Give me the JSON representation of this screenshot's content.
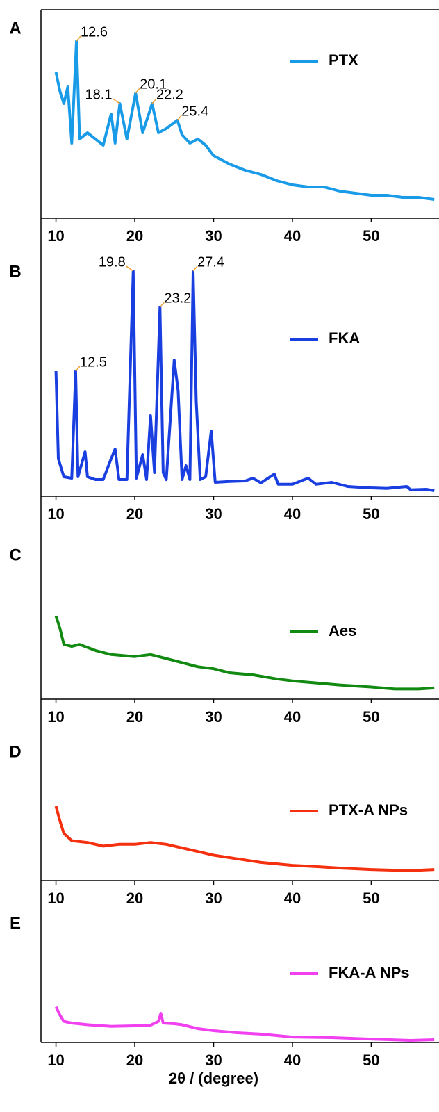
{
  "chart_data": [
    {
      "type": "line",
      "panel_label": "A",
      "xlim": [
        8.1,
        58.6
      ],
      "ylim": [
        0,
        100
      ],
      "xticks": [
        10,
        20,
        30,
        40,
        50
      ],
      "peak_labels": [
        12.6,
        18.1,
        20.1,
        22.2,
        25.4
      ],
      "series": [
        {
          "name": "PTX",
          "color": "#1a9be8",
          "x": [
            10,
            10.5,
            11,
            11.5,
            12,
            12.6,
            13,
            14,
            15,
            16,
            17,
            17.5,
            18.1,
            19,
            20.1,
            21,
            22.2,
            23,
            24,
            25.4,
            26,
            27,
            28,
            29,
            30,
            32,
            34,
            36,
            38,
            40,
            42,
            44,
            46,
            48,
            50,
            52,
            54,
            56,
            58
          ],
          "values": [
            70,
            61,
            55,
            63,
            36,
            85,
            38,
            41,
            38,
            35,
            50,
            36,
            55,
            38,
            60,
            41,
            55,
            41,
            43,
            47,
            40,
            36,
            38,
            35,
            30,
            26,
            23,
            21,
            18,
            16,
            15,
            15,
            13,
            12,
            11,
            11,
            10,
            10,
            9
          ]
        }
      ]
    },
    {
      "type": "line",
      "panel_label": "B",
      "xlim": [
        8.1,
        58.6
      ],
      "ylim": [
        0,
        100
      ],
      "xticks": [
        10,
        20,
        30,
        40,
        50
      ],
      "peak_labels": [
        12.5,
        19.8,
        23.2,
        27.4
      ],
      "series": [
        {
          "name": "FKA",
          "color": "#1a3fe0",
          "x": [
            10,
            10.3,
            11,
            12,
            12.5,
            12.8,
            13.7,
            14,
            15,
            16,
            17,
            17.5,
            18,
            19,
            19.8,
            20.2,
            21,
            21.5,
            22,
            22.5,
            23.2,
            23.6,
            24,
            25,
            25.5,
            26,
            26.5,
            27,
            27.4,
            27.8,
            28.3,
            29,
            29.7,
            30.2,
            32,
            34,
            35,
            36,
            37.7,
            38.2,
            40,
            42,
            43,
            45,
            47,
            50,
            52,
            54.5,
            55,
            57,
            58
          ],
          "values": [
            45,
            13.5,
            7,
            6.5,
            45,
            7,
            16,
            7,
            6,
            6,
            13.5,
            17,
            6,
            6,
            81,
            6.5,
            15,
            6,
            29,
            8.5,
            68,
            8.5,
            6,
            49,
            38,
            6,
            11,
            6,
            81,
            34,
            6,
            7,
            23.5,
            5,
            5.3,
            5.5,
            6.5,
            4.8,
            8,
            4.3,
            4.3,
            6.5,
            4.3,
            5,
            3.5,
            3,
            2.8,
            3.5,
            2.3,
            2.5,
            2
          ]
        }
      ]
    },
    {
      "type": "line",
      "panel_label": "C",
      "xlim": [
        8.1,
        58.6
      ],
      "ylim": [
        0,
        100
      ],
      "xticks": [
        10,
        20,
        30,
        40,
        50
      ],
      "series": [
        {
          "name": "Aes",
          "color": "#128a12",
          "x": [
            10,
            10.5,
            11,
            12,
            13,
            15,
            17,
            20,
            22,
            24,
            26,
            28,
            30,
            32,
            35,
            38,
            40,
            43,
            46,
            50,
            53,
            56,
            58
          ],
          "values": [
            41,
            35,
            27,
            26,
            27,
            24,
            22,
            21,
            22,
            20,
            18,
            16,
            15,
            13,
            12,
            10,
            9,
            8,
            7,
            6,
            5,
            5,
            5.5
          ]
        }
      ]
    },
    {
      "type": "line",
      "panel_label": "D",
      "xlim": [
        8.1,
        58.6
      ],
      "ylim": [
        0,
        100
      ],
      "xticks": [
        10,
        20,
        30,
        40,
        50
      ],
      "series": [
        {
          "name": "PTX-A NPs",
          "color": "#f5300f",
          "x": [
            10,
            10.5,
            11,
            12,
            14,
            16,
            18,
            20,
            22,
            24,
            26,
            28,
            30,
            33,
            36,
            40,
            43,
            46,
            50,
            53,
            56,
            58
          ],
          "values": [
            41,
            33,
            26,
            22,
            21,
            19,
            20,
            20,
            21,
            20,
            18,
            16,
            14,
            12,
            10,
            8.4,
            7.7,
            6.9,
            6.1,
            5.7,
            5.7,
            6.1
          ]
        }
      ]
    },
    {
      "type": "line",
      "panel_label": "E",
      "xlim": [
        8.1,
        58.6
      ],
      "ylim": [
        0,
        100
      ],
      "xticks": [
        10,
        20,
        30,
        40,
        50
      ],
      "xlabel": "2θ / (degree)",
      "series": [
        {
          "name": "FKA-A NPs",
          "color": "#f040f0",
          "x": [
            10,
            10.5,
            11,
            12,
            14,
            17,
            20,
            22,
            23,
            23.3,
            23.6,
            25,
            26,
            28,
            30,
            33,
            36,
            40,
            45,
            50,
            55,
            58
          ],
          "values": [
            22,
            17,
            13,
            12,
            11,
            10,
            10.3,
            10.7,
            13,
            18,
            12,
            11.6,
            11,
            8.6,
            7.3,
            6,
            5.2,
            3.4,
            3,
            2.1,
            1.3,
            1.7
          ]
        }
      ]
    }
  ]
}
